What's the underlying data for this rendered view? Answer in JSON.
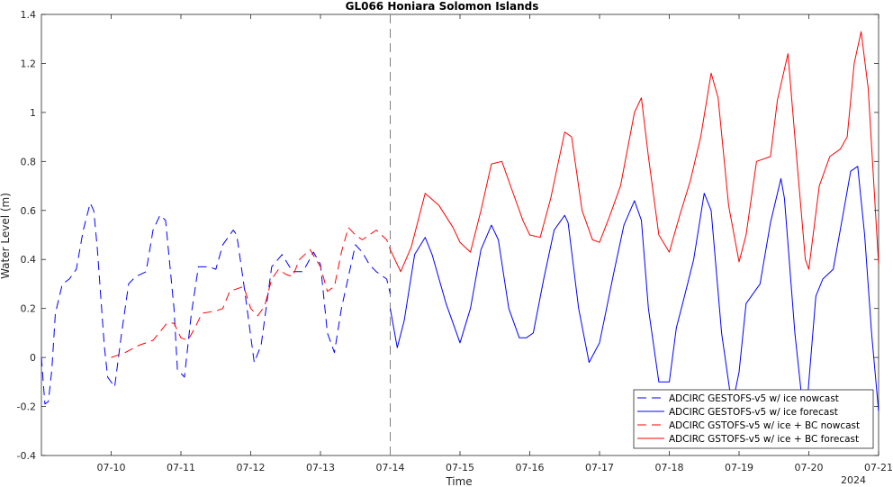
{
  "chart_data": {
    "type": "line",
    "title": "GL066 Honiara Solomon Islands",
    "xlabel": "Time",
    "ylabel": "Water Level (m)",
    "year_label": "2024",
    "xlim": [
      "2024-07-09",
      "2024-07-21"
    ],
    "ylim": [
      -0.4,
      1.4
    ],
    "xticks": [
      "07-10",
      "07-11",
      "07-12",
      "07-13",
      "07-14",
      "07-15",
      "07-16",
      "07-17",
      "07-18",
      "07-19",
      "07-20",
      "07-21"
    ],
    "yticks": [
      "-0.4",
      "-0.2",
      "0",
      "0.2",
      "0.4",
      "0.6",
      "0.8",
      "1",
      "1.2",
      "1.4"
    ],
    "nowcast_forecast_divider": "2024-07-14",
    "legend_position": "bottom-right",
    "colors": {
      "blue": "#0000ff",
      "red": "#ff0000",
      "divider": "#808080"
    },
    "series": [
      {
        "name": "ADCIRC GESTOFS-v5 w/ ice nowcast",
        "color": "#0000ff",
        "dash": "dashed",
        "x": [
          9.0,
          9.05,
          9.1,
          9.15,
          9.2,
          9.3,
          9.4,
          9.5,
          9.6,
          9.7,
          9.75,
          9.8,
          9.9,
          9.95,
          10.05,
          10.15,
          10.25,
          10.35,
          10.5,
          10.6,
          10.7,
          10.78,
          10.9,
          10.95,
          11.05,
          11.15,
          11.25,
          11.4,
          11.5,
          11.6,
          11.75,
          11.8,
          11.9,
          12.05,
          12.15,
          12.3,
          12.45,
          12.6,
          12.75,
          12.9,
          13.0,
          13.1,
          13.2,
          13.3,
          13.5,
          13.6,
          13.7,
          13.8,
          13.95,
          14.0
        ],
        "y": [
          0.0,
          -0.19,
          -0.18,
          -0.05,
          0.18,
          0.3,
          0.32,
          0.36,
          0.52,
          0.63,
          0.6,
          0.45,
          0.05,
          -0.08,
          -0.12,
          0.1,
          0.3,
          0.33,
          0.35,
          0.52,
          0.58,
          0.56,
          0.2,
          -0.05,
          -0.08,
          0.18,
          0.37,
          0.37,
          0.36,
          0.46,
          0.52,
          0.5,
          0.3,
          -0.02,
          0.05,
          0.37,
          0.42,
          0.35,
          0.35,
          0.43,
          0.38,
          0.1,
          0.02,
          0.2,
          0.46,
          0.43,
          0.38,
          0.35,
          0.32,
          0.26
        ]
      },
      {
        "name": "ADCIRC GESTOFS-v5 w/ ice forecast",
        "color": "#0000ff",
        "dash": "solid",
        "x": [
          14.0,
          14.1,
          14.2,
          14.35,
          14.5,
          14.6,
          14.8,
          15.0,
          15.15,
          15.3,
          15.45,
          15.55,
          15.7,
          15.85,
          15.95,
          16.05,
          16.2,
          16.35,
          16.5,
          16.55,
          16.7,
          16.85,
          17.0,
          17.1,
          17.2,
          17.35,
          17.5,
          17.6,
          17.7,
          17.85,
          18.0,
          18.1,
          18.2,
          18.35,
          18.5,
          18.6,
          18.75,
          18.9,
          19.0,
          19.1,
          19.3,
          19.45,
          19.6,
          19.65,
          19.8,
          19.95,
          20.0,
          20.1,
          20.2,
          20.35,
          20.5,
          20.6,
          20.7,
          20.8,
          20.9,
          21.0
        ],
        "y": [
          0.2,
          0.04,
          0.15,
          0.42,
          0.49,
          0.42,
          0.22,
          0.06,
          0.2,
          0.44,
          0.54,
          0.48,
          0.2,
          0.08,
          0.08,
          0.1,
          0.32,
          0.52,
          0.58,
          0.55,
          0.2,
          -0.02,
          0.06,
          0.2,
          0.34,
          0.54,
          0.64,
          0.56,
          0.2,
          -0.1,
          -0.1,
          0.12,
          0.23,
          0.4,
          0.67,
          0.6,
          0.1,
          -0.2,
          -0.06,
          0.22,
          0.3,
          0.55,
          0.73,
          0.65,
          0.1,
          -0.3,
          -0.1,
          0.25,
          0.32,
          0.36,
          0.6,
          0.76,
          0.78,
          0.5,
          0.1,
          -0.22
        ]
      },
      {
        "name": "ADCIRC GSTOFS-v5 w/ ice + BC nowcast",
        "color": "#ff0000",
        "dash": "dashed",
        "x": [
          10.0,
          10.2,
          10.4,
          10.6,
          10.8,
          10.9,
          11.0,
          11.1,
          11.2,
          11.3,
          11.5,
          11.6,
          11.7,
          11.9,
          12.0,
          12.1,
          12.2,
          12.3,
          12.4,
          12.5,
          12.6,
          12.7,
          12.85,
          13.0,
          13.1,
          13.2,
          13.3,
          13.4,
          13.5,
          13.6,
          13.7,
          13.8,
          13.95,
          14.0
        ],
        "y": [
          0.0,
          0.02,
          0.05,
          0.07,
          0.14,
          0.14,
          0.08,
          0.07,
          0.12,
          0.18,
          0.19,
          0.2,
          0.27,
          0.29,
          0.2,
          0.17,
          0.21,
          0.32,
          0.36,
          0.34,
          0.33,
          0.4,
          0.44,
          0.37,
          0.27,
          0.29,
          0.43,
          0.53,
          0.5,
          0.48,
          0.5,
          0.52,
          0.48,
          0.44
        ]
      },
      {
        "name": "ADCIRC GSTOFS-v5 w/ ice + BC forecast",
        "color": "#ff0000",
        "dash": "solid",
        "x": [
          14.0,
          14.15,
          14.3,
          14.5,
          14.7,
          14.9,
          15.0,
          15.15,
          15.3,
          15.45,
          15.6,
          15.75,
          15.9,
          16.0,
          16.15,
          16.3,
          16.5,
          16.6,
          16.75,
          16.9,
          17.0,
          17.15,
          17.3,
          17.5,
          17.6,
          17.7,
          17.85,
          18.0,
          18.15,
          18.3,
          18.45,
          18.6,
          18.7,
          18.85,
          19.0,
          19.1,
          19.25,
          19.45,
          19.55,
          19.7,
          19.8,
          19.95,
          20.0,
          20.15,
          20.3,
          20.45,
          20.55,
          20.65,
          20.75,
          20.85,
          21.0
        ],
        "y": [
          0.44,
          0.35,
          0.45,
          0.67,
          0.62,
          0.53,
          0.47,
          0.43,
          0.6,
          0.79,
          0.8,
          0.68,
          0.56,
          0.5,
          0.49,
          0.65,
          0.92,
          0.9,
          0.6,
          0.48,
          0.47,
          0.58,
          0.7,
          1.0,
          1.06,
          0.82,
          0.5,
          0.43,
          0.58,
          0.72,
          0.9,
          1.16,
          1.06,
          0.62,
          0.39,
          0.5,
          0.8,
          0.82,
          1.05,
          1.24,
          0.9,
          0.4,
          0.36,
          0.7,
          0.82,
          0.85,
          0.9,
          1.2,
          1.33,
          1.1,
          0.38
        ]
      }
    ]
  }
}
